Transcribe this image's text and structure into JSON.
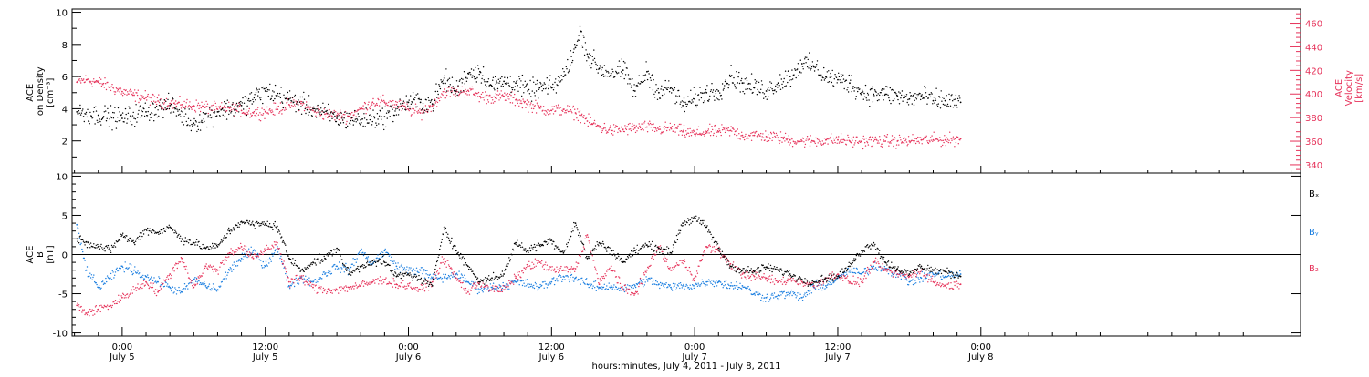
{
  "colors": {
    "black": "#000000",
    "pink": "#e6325a",
    "blue": "#1a7ee0"
  },
  "xaxis": {
    "title": "hours:minutes, July  4, 2011 - July  8, 2011",
    "range_hours": [
      -4.2,
      98.8
    ],
    "ticks": [
      {
        "t": 0,
        "time": "0:00",
        "date": "July 5"
      },
      {
        "t": 12,
        "time": "12:00",
        "date": "July 5"
      },
      {
        "t": 24,
        "time": "0:00",
        "date": "July 6"
      },
      {
        "t": 36,
        "time": "12:00",
        "date": "July 6"
      },
      {
        "t": 48,
        "time": "0:00",
        "date": "July 7"
      },
      {
        "t": 60,
        "time": "12:00",
        "date": "July 7"
      },
      {
        "t": 72,
        "time": "0:00",
        "date": "July 8"
      }
    ]
  },
  "chart_data": [
    {
      "type": "scatter",
      "panel": "top",
      "ylabel_left": [
        "ACE",
        "Ion Density",
        "[cm⁻³]"
      ],
      "ylabel_right": [
        "ACE",
        "Velocity",
        "[km/s]"
      ],
      "ylim_left": [
        0,
        10.2
      ],
      "yticks_left": [
        2,
        4,
        6,
        8,
        10
      ],
      "ylim_right": [
        333,
        472
      ],
      "yticks_right": [
        340,
        360,
        380,
        400,
        420,
        440,
        460
      ],
      "series": [
        {
          "color": "black",
          "axis": "left",
          "x": [
            -3.8,
            -2,
            0,
            2,
            4,
            6,
            8,
            10,
            12,
            14,
            16,
            18,
            20,
            22,
            24,
            25,
            26,
            27,
            28,
            29,
            30,
            31,
            32,
            33,
            34,
            35,
            36,
            37,
            38,
            38.5,
            39,
            40,
            41,
            42,
            43,
            44,
            45,
            46,
            47,
            48,
            49,
            50,
            51,
            52,
            53,
            54,
            55,
            56,
            57,
            58,
            59,
            60,
            61,
            62,
            63,
            64,
            65,
            66,
            67,
            68,
            69,
            70.3
          ],
          "y": [
            3.8,
            3.6,
            3.4,
            3.8,
            4.2,
            3.1,
            3.8,
            4.2,
            5.1,
            4.6,
            4.0,
            3.4,
            3.3,
            3.5,
            4.4,
            4.4,
            4.3,
            5.9,
            5.1,
            6.2,
            6.3,
            5.4,
            5.7,
            5.6,
            5.1,
            5.3,
            5.3,
            6.0,
            7.8,
            8.8,
            7.4,
            6.5,
            6.2,
            6.4,
            5.1,
            6.3,
            5.0,
            5.3,
            4.2,
            4.6,
            5.0,
            5.1,
            6.0,
            5.6,
            5.3,
            5.1,
            5.6,
            6.0,
            6.8,
            6.6,
            6.0,
            5.8,
            5.6,
            5.0,
            4.9,
            4.9,
            4.8,
            4.6,
            4.8,
            4.5,
            4.5,
            4.4
          ]
        },
        {
          "color": "pink",
          "axis": "right",
          "x": [
            -3.8,
            -3,
            -2,
            -1,
            0,
            1,
            2,
            3,
            4,
            5,
            6,
            7,
            8,
            9,
            10,
            11,
            12,
            13,
            14,
            15,
            16,
            17,
            18,
            19,
            20,
            21,
            22,
            23,
            24,
            25,
            26,
            27,
            28,
            29,
            30,
            31,
            32,
            33,
            34,
            35,
            36,
            37,
            38,
            38.5,
            39,
            40,
            41,
            42,
            43,
            44,
            45,
            46,
            47,
            48,
            49,
            50,
            51,
            52,
            53,
            54,
            55,
            56,
            57,
            58,
            59,
            60,
            61,
            62,
            63,
            64,
            65,
            66,
            67,
            68,
            69,
            70.3
          ],
          "y": [
            410,
            412,
            410,
            406,
            402,
            399,
            397,
            394,
            392,
            391,
            390,
            389,
            387,
            388,
            386,
            384,
            385,
            387,
            391,
            392,
            386,
            383,
            382,
            381,
            387,
            393,
            393,
            391,
            387,
            384,
            390,
            402,
            402,
            403,
            398,
            397,
            398,
            395,
            391,
            388,
            386,
            387,
            384,
            382,
            377,
            372,
            369,
            370,
            371,
            372,
            370,
            371,
            368,
            366,
            368,
            368,
            369,
            365,
            365,
            364,
            363,
            361,
            360,
            360,
            361,
            361,
            360,
            360,
            360,
            360,
            360,
            360,
            361,
            361,
            361,
            362
          ]
        }
      ]
    },
    {
      "type": "scatter",
      "panel": "bottom",
      "ylabel_left": [
        "ACE",
        "B",
        "[nT]"
      ],
      "ylim": [
        -10.4,
        10.4
      ],
      "yticks": [
        -10,
        -5,
        0,
        5,
        10
      ],
      "zero_line": true,
      "legend": [
        "Bₓ",
        "Bᵧ",
        "B₂"
      ],
      "series": [
        {
          "name": "Bₓ",
          "color": "black",
          "x": [
            -3.8,
            -3,
            -2,
            -1,
            0,
            1,
            2,
            3,
            4,
            5,
            6,
            7,
            8,
            9,
            10,
            11,
            12,
            13,
            14,
            15,
            16,
            17,
            18,
            19,
            20,
            21,
            22,
            23,
            24,
            25,
            26,
            27,
            28,
            29,
            30,
            31,
            32,
            33,
            34,
            35,
            36,
            37,
            38,
            39,
            40,
            41,
            42,
            43,
            44,
            45,
            46,
            47,
            48,
            49,
            50,
            51,
            52,
            53,
            54,
            55,
            56,
            57,
            58,
            59,
            60,
            61,
            62,
            63,
            64,
            65,
            66,
            67,
            68,
            69,
            70.3
          ],
          "y": [
            2.0,
            1.6,
            1.0,
            0.5,
            2.5,
            1.5,
            3.2,
            2.8,
            3.5,
            2.0,
            1.5,
            0.8,
            1.0,
            3.0,
            4.2,
            3.8,
            3.9,
            3.6,
            -0.5,
            -2.0,
            -1.0,
            -0.5,
            0.8,
            -2.5,
            -1.6,
            -0.8,
            -1.0,
            -2.8,
            -2.5,
            -3.2,
            -4.0,
            3.5,
            0.5,
            -1.5,
            -3.5,
            -3.0,
            -2.5,
            1.5,
            0.5,
            1.2,
            1.8,
            0.2,
            4.0,
            -0.5,
            1.5,
            0.5,
            -1.0,
            0.5,
            1.2,
            0.8,
            0.2,
            4.0,
            4.6,
            3.5,
            0.8,
            -1.5,
            -2.0,
            -2.2,
            -1.6,
            -2.0,
            -2.5,
            -3.2,
            -3.5,
            -3.0,
            -2.8,
            -1.5,
            0.5,
            1.5,
            -1.0,
            -1.8,
            -2.5,
            -1.5,
            -2.0,
            -2.2,
            -2.8
          ]
        },
        {
          "name": "Bᵧ",
          "color": "blue",
          "x": [
            -3.8,
            -3,
            -2,
            -1,
            0,
            1,
            2,
            3,
            4,
            5,
            6,
            7,
            8,
            9,
            10,
            11,
            12,
            13,
            14,
            15,
            16,
            17,
            18,
            19,
            20,
            21,
            22,
            23,
            24,
            25,
            26,
            27,
            28,
            29,
            30,
            31,
            32,
            33,
            34,
            35,
            36,
            37,
            38,
            39,
            40,
            41,
            42,
            43,
            44,
            45,
            46,
            47,
            48,
            49,
            50,
            51,
            52,
            53,
            54,
            55,
            56,
            57,
            58,
            59,
            60,
            61,
            62,
            63,
            64,
            65,
            66,
            67,
            68,
            69,
            70.3
          ],
          "y": [
            3.8,
            -2.0,
            -4.2,
            -3.0,
            -1.5,
            -2.0,
            -2.8,
            -3.5,
            -4.2,
            -4.8,
            -3.2,
            -4.0,
            -4.5,
            -2.0,
            -0.5,
            0.5,
            -1.5,
            1.0,
            -4.0,
            -3.0,
            -3.5,
            -2.5,
            -1.5,
            -2.0,
            0.5,
            -1.2,
            0.5,
            -1.5,
            -2.0,
            -2.0,
            -3.0,
            -3.0,
            -2.5,
            -3.5,
            -4.5,
            -4.2,
            -4.0,
            -3.5,
            -3.8,
            -4.2,
            -3.5,
            -2.8,
            -3.0,
            -3.8,
            -4.2,
            -4.0,
            -4.5,
            -4.0,
            -3.2,
            -3.8,
            -4.2,
            -4.0,
            -4.0,
            -3.5,
            -3.5,
            -4.0,
            -4.0,
            -5.0,
            -5.5,
            -5.2,
            -5.0,
            -5.5,
            -4.2,
            -4.0,
            -3.0,
            -2.0,
            -2.5,
            -1.5,
            -1.8,
            -2.5,
            -3.5,
            -3.0,
            -2.5,
            -2.8,
            -2.5
          ]
        },
        {
          "name": "B₂",
          "color": "pink",
          "x": [
            -3.8,
            -3,
            -2,
            -1,
            0,
            1,
            2,
            3,
            4,
            5,
            6,
            7,
            8,
            9,
            10,
            11,
            12,
            13,
            14,
            15,
            16,
            17,
            18,
            19,
            20,
            21,
            22,
            23,
            24,
            25,
            26,
            27,
            28,
            29,
            30,
            31,
            32,
            33,
            34,
            35,
            36,
            37,
            38,
            39,
            40,
            41,
            42,
            43,
            44,
            45,
            46,
            47,
            48,
            49,
            50,
            51,
            52,
            53,
            54,
            55,
            56,
            57,
            58,
            59,
            60,
            61,
            62,
            63,
            64,
            65,
            66,
            67,
            68,
            69,
            70.3
          ],
          "y": [
            -6.5,
            -7.5,
            -7.0,
            -6.5,
            -5.5,
            -4.5,
            -3.5,
            -4.8,
            -2.5,
            -0.5,
            -4.2,
            -1.5,
            -2.0,
            0.2,
            1.0,
            -0.5,
            0.5,
            1.5,
            -3.5,
            -3.0,
            -4.2,
            -4.5,
            -4.5,
            -4.2,
            -4.0,
            -3.5,
            -3.2,
            -3.8,
            -4.0,
            -4.5,
            -3.5,
            -0.5,
            -3.0,
            -4.8,
            -3.5,
            -4.5,
            -4.5,
            -3.0,
            -1.5,
            -1.0,
            -2.0,
            -2.0,
            -1.8,
            2.5,
            -3.8,
            -1.5,
            -4.5,
            -5.0,
            -2.0,
            1.0,
            -2.0,
            -0.8,
            -3.0,
            1.0,
            0.5,
            -1.2,
            -2.5,
            -2.8,
            -3.0,
            -3.5,
            -3.2,
            -3.5,
            -4.0,
            -3.0,
            -2.5,
            -3.5,
            -3.5,
            -1.0,
            -2.0,
            -2.5,
            -2.8,
            -2.0,
            -3.5,
            -4.0,
            -3.8
          ]
        }
      ]
    }
  ]
}
